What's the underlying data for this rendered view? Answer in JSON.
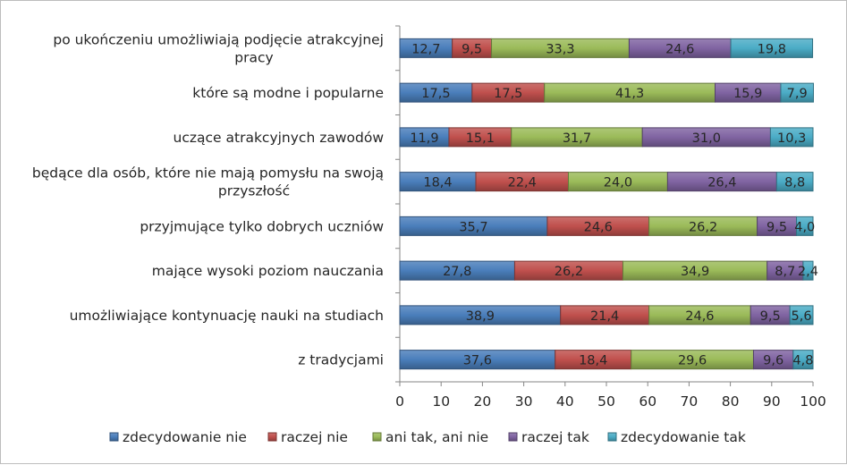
{
  "chart_data": {
    "type": "bar",
    "orientation": "horizontal",
    "stacked": true,
    "categories": [
      "po ukończeniu umożliwiają podjęcie atrakcyjnej pracy",
      "które są modne i popularne",
      "uczące atrakcyjnych zawodów",
      "będące dla osób, które nie mają pomysłu na swoją przyszłość",
      "przyjmujące tylko dobrych uczniów",
      "mające wysoki poziom nauczania",
      "umożliwiające kontynuację nauki na studiach",
      "z tradycjami"
    ],
    "series": [
      {
        "name": "zdecydowanie nie",
        "color": "#4a7ebb",
        "values": [
          12.7,
          17.5,
          11.9,
          18.4,
          35.7,
          27.8,
          38.9,
          37.6
        ],
        "labels": [
          "12,7",
          "17,5",
          "11,9",
          "18,4",
          "35,7",
          "27,8",
          "38,9",
          "37,6"
        ]
      },
      {
        "name": "raczej nie",
        "color": "#c0504d",
        "values": [
          9.5,
          17.5,
          15.1,
          22.4,
          24.6,
          26.2,
          21.4,
          18.4
        ],
        "labels": [
          "9,5",
          "17,5",
          "15,1",
          "22,4",
          "24,6",
          "26,2",
          "21,4",
          "18,4"
        ]
      },
      {
        "name": "ani tak, ani nie",
        "color": "#9bbb59",
        "values": [
          33.3,
          41.3,
          31.7,
          24.0,
          26.2,
          34.9,
          24.6,
          29.6
        ],
        "labels": [
          "33,3",
          "41,3",
          "31,7",
          "24,0",
          "26,2",
          "34,9",
          "24,6",
          "29,6"
        ]
      },
      {
        "name": "raczej tak",
        "color": "#8064a2",
        "values": [
          24.6,
          15.9,
          31.0,
          26.4,
          9.5,
          8.7,
          9.5,
          9.6
        ],
        "labels": [
          "24,6",
          "15,9",
          "31,0",
          "26,4",
          "9,5",
          "8,7",
          "9,5",
          "9,6"
        ]
      },
      {
        "name": "zdecydowanie tak",
        "color": "#4bacc6",
        "values": [
          19.8,
          7.9,
          10.3,
          8.8,
          4.0,
          2.4,
          5.6,
          4.8
        ],
        "labels": [
          "19,8",
          "7,9",
          "10,3",
          "8,8",
          "4,0",
          "2,4",
          "5,6",
          "4,8"
        ]
      }
    ],
    "xlim": [
      0,
      100
    ],
    "xticks": [
      "0",
      "10",
      "20",
      "30",
      "40",
      "50",
      "60",
      "70",
      "80",
      "90",
      "100"
    ],
    "grid": false,
    "legend_position": "bottom",
    "title": "",
    "xlabel": "",
    "ylabel": ""
  }
}
